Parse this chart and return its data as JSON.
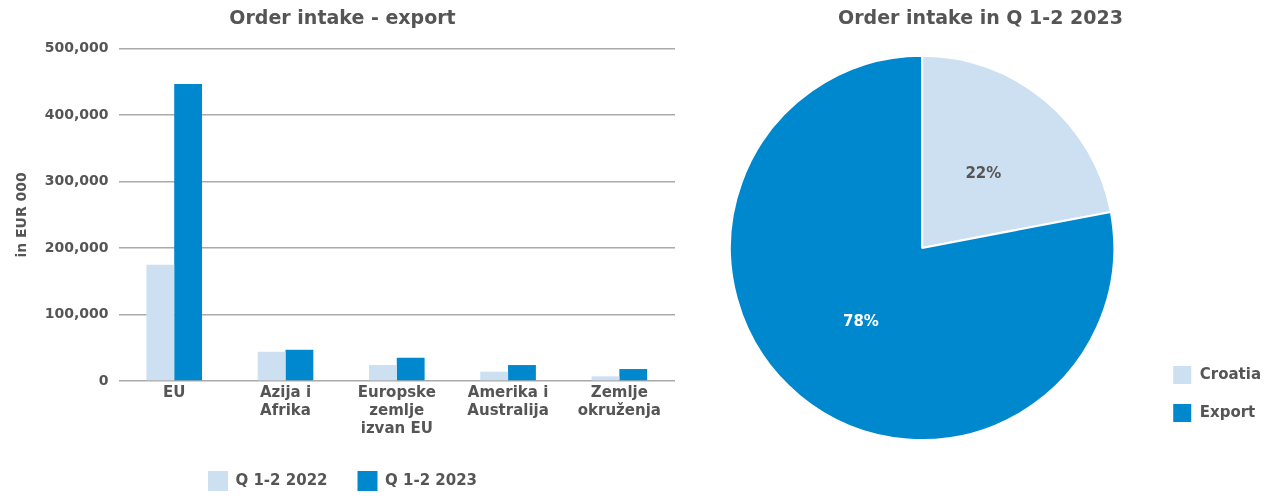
{
  "chart_data": [
    {
      "type": "bar",
      "title": "Order intake - export",
      "ylabel": "in EUR 000",
      "categories": [
        "EU",
        "Azija i Afrika",
        "Europske zemlje izvan EU",
        "Amerika i Australija",
        "Zemlje okruženja"
      ],
      "series": [
        {
          "name": "Q 1-2 2022",
          "color": "#cde0f1",
          "values": [
            175000,
            44000,
            24000,
            14000,
            7000
          ]
        },
        {
          "name": "Q 1-2 2023",
          "color": "#0088ce",
          "values": [
            447000,
            47000,
            35000,
            24000,
            18000
          ]
        }
      ],
      "ylim": [
        0,
        500000
      ],
      "yticks": [
        0,
        {
          "value": 100000,
          "label": "100,000"
        },
        {
          "value": 200000,
          "label": "200,000"
        },
        {
          "value": 300000,
          "label": "300,000"
        },
        {
          "value": 400000,
          "label": "400,000"
        },
        {
          "value": 500000,
          "label": "500,000"
        }
      ],
      "grid": "y",
      "legend": "bottom"
    },
    {
      "type": "pie",
      "title": "Order intake in Q 1-2 2023",
      "categories": [
        "Croatia",
        "Export"
      ],
      "values": [
        22,
        78
      ],
      "colors": [
        "#cde0f1",
        "#0088ce"
      ],
      "value_labels": [
        "22%",
        "78%"
      ],
      "legend": "bottom right"
    }
  ]
}
